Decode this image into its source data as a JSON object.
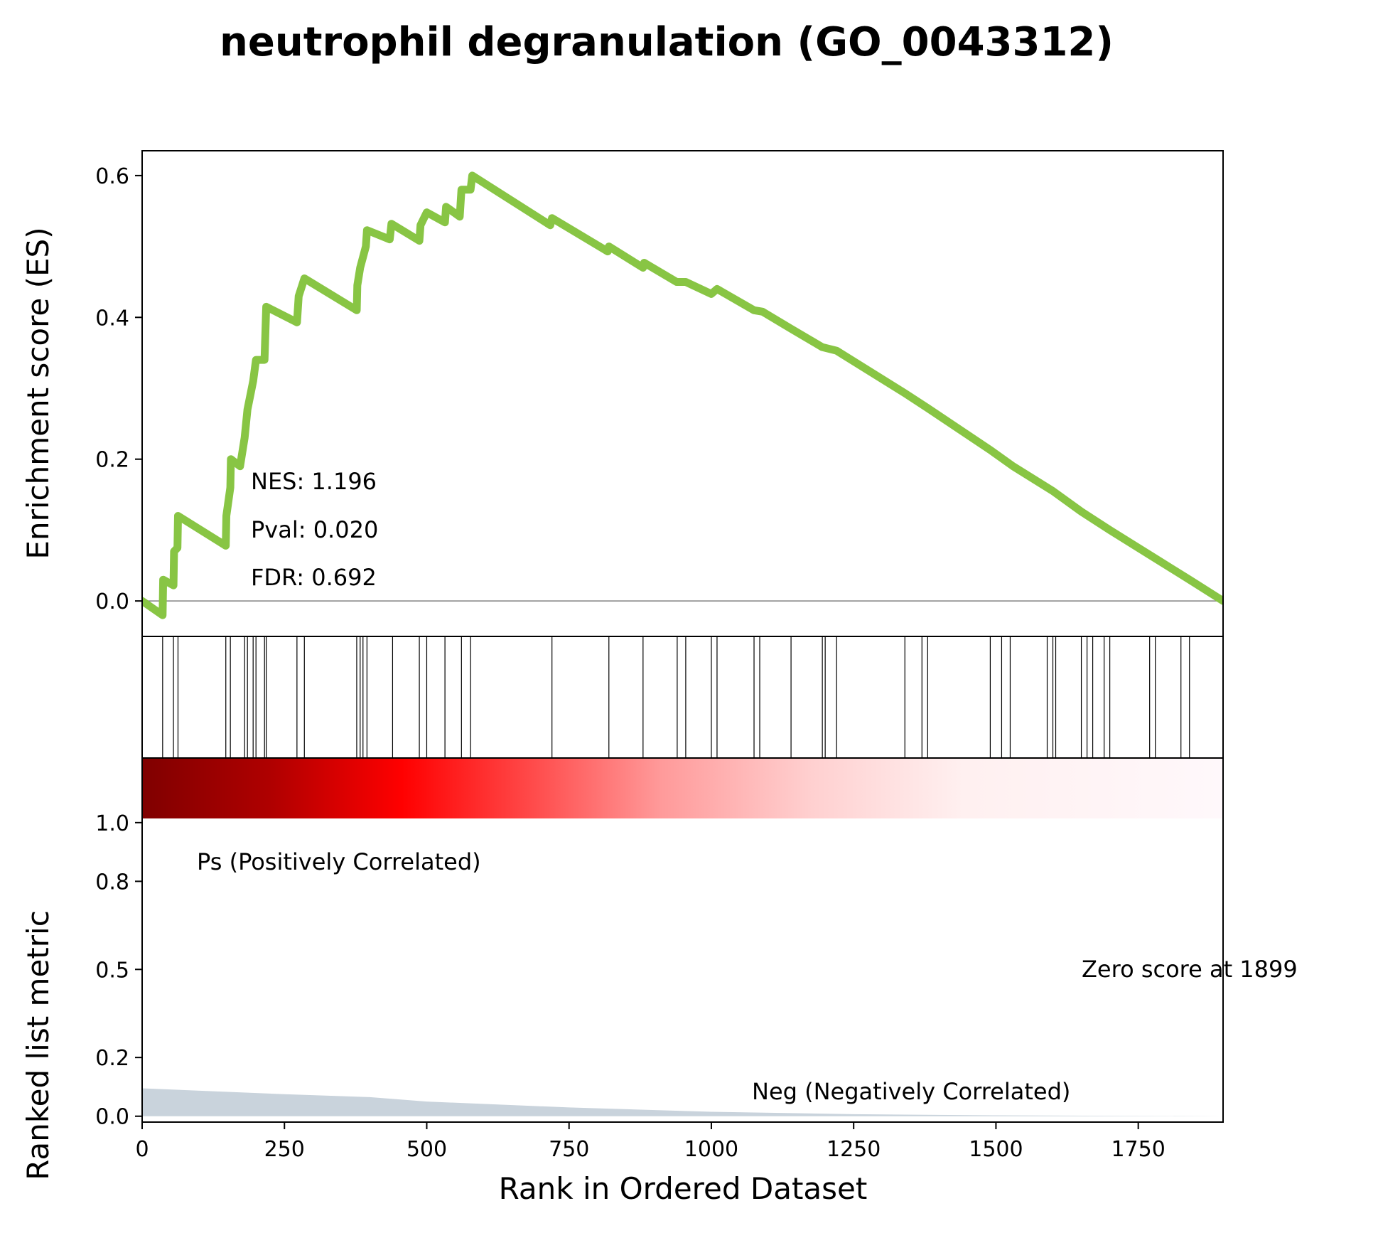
{
  "chart_data": {
    "type": "line",
    "title": "neutrophil degranulation (GO_0043312)",
    "xlabel": "Rank in Ordered Dataset",
    "xlim": [
      0,
      1899
    ],
    "x_ticks": [
      "0",
      "250",
      "500",
      "750",
      "1000",
      "1250",
      "1500",
      "1750"
    ],
    "es_panel": {
      "ylabel": "Enrichment score (ES)",
      "ylim": [
        -0.05,
        0.635
      ],
      "y_ticks": [
        "0.0",
        "0.2",
        "0.4",
        "0.6"
      ],
      "line_color": "#88c544",
      "baseline": 0,
      "es_curve": [
        [
          0,
          0.0
        ],
        [
          36,
          -0.02
        ],
        [
          37,
          0.03
        ],
        [
          55,
          0.022
        ],
        [
          56,
          0.07
        ],
        [
          62,
          0.075
        ],
        [
          63,
          0.12
        ],
        [
          147,
          0.078
        ],
        [
          148,
          0.12
        ],
        [
          155,
          0.16
        ],
        [
          156,
          0.2
        ],
        [
          172,
          0.19
        ],
        [
          180,
          0.23
        ],
        [
          185,
          0.27
        ],
        [
          195,
          0.31
        ],
        [
          200,
          0.34
        ],
        [
          215,
          0.34
        ],
        [
          218,
          0.415
        ],
        [
          272,
          0.393
        ],
        [
          275,
          0.43
        ],
        [
          285,
          0.455
        ],
        [
          377,
          0.41
        ],
        [
          378,
          0.445
        ],
        [
          383,
          0.47
        ],
        [
          393,
          0.5
        ],
        [
          395,
          0.523
        ],
        [
          435,
          0.51
        ],
        [
          438,
          0.532
        ],
        [
          487,
          0.508
        ],
        [
          489,
          0.53
        ],
        [
          500,
          0.548
        ],
        [
          532,
          0.534
        ],
        [
          534,
          0.556
        ],
        [
          558,
          0.542
        ],
        [
          561,
          0.58
        ],
        [
          577,
          0.58
        ],
        [
          580,
          0.6
        ],
        [
          717,
          0.53
        ],
        [
          720,
          0.54
        ],
        [
          818,
          0.493
        ],
        [
          820,
          0.5
        ],
        [
          880,
          0.47
        ],
        [
          882,
          0.477
        ],
        [
          939,
          0.45
        ],
        [
          955,
          0.45
        ],
        [
          1000,
          0.433
        ],
        [
          1010,
          0.44
        ],
        [
          1075,
          0.41
        ],
        [
          1090,
          0.408
        ],
        [
          1140,
          0.384
        ],
        [
          1195,
          0.358
        ],
        [
          1220,
          0.353
        ],
        [
          1340,
          0.293
        ],
        [
          1380,
          0.272
        ],
        [
          1490,
          0.213
        ],
        [
          1530,
          0.19
        ],
        [
          1600,
          0.155
        ],
        [
          1650,
          0.126
        ],
        [
          1700,
          0.1
        ],
        [
          1780,
          0.06
        ],
        [
          1840,
          0.03
        ],
        [
          1899,
          0.0
        ]
      ],
      "annotations": [
        "NES: 1.196",
        "Pval: 0.020",
        "FDR: 0.692"
      ]
    },
    "hits_panel": {
      "hit_ranks": [
        36,
        55,
        63,
        147,
        155,
        180,
        185,
        195,
        200,
        215,
        218,
        272,
        285,
        377,
        383,
        388,
        395,
        440,
        487,
        500,
        532,
        561,
        577,
        720,
        820,
        880,
        940,
        955,
        1000,
        1010,
        1075,
        1085,
        1140,
        1195,
        1200,
        1220,
        1340,
        1370,
        1380,
        1490,
        1510,
        1525,
        1590,
        1600,
        1605,
        1650,
        1660,
        1670,
        1690,
        1700,
        1770,
        1780,
        1825,
        1840
      ]
    },
    "rank_panel": {
      "ylabel": "Ranked list metric",
      "ylim": [
        -0.02,
        1.22
      ],
      "y_ticks": [
        "0.0",
        "0.2",
        "0.5",
        "0.8",
        "1.0"
      ],
      "fill_color": "#c9d3dc",
      "rank_metric_curve": [
        [
          0,
          0.095
        ],
        [
          250,
          0.075
        ],
        [
          400,
          0.065
        ],
        [
          500,
          0.05
        ],
        [
          750,
          0.03
        ],
        [
          1000,
          0.015
        ],
        [
          1250,
          0.007
        ],
        [
          1500,
          0.003
        ],
        [
          1899,
          0.0
        ]
      ],
      "pos_label": "Ps (Positively Correlated)",
      "neg_label": "Neg (Negatively Correlated)",
      "zero_label": "Zero score at 1899",
      "pos_color": "#ff0000",
      "neg_color": "#0000ff"
    }
  }
}
